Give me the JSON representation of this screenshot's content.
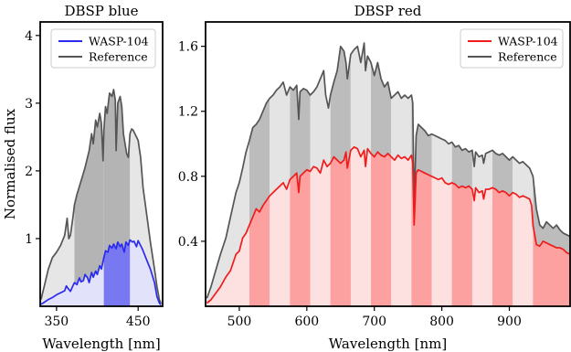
{
  "chart_data": [
    {
      "type": "area",
      "title": "DBSP blue",
      "xlabel": "Wavelength [nm]",
      "ylabel": "Normalised flux",
      "xlim": [
        330,
        480
      ],
      "ylim": [
        0,
        4.2
      ],
      "xticks": [
        350,
        450
      ],
      "xtick_labels": [
        "350",
        "450"
      ],
      "yticks": [
        1,
        2,
        3,
        4
      ],
      "ytick_labels": [
        "1",
        "2",
        "3",
        "4"
      ],
      "legend_position": "top-right",
      "bins": [
        [
          330,
          372
        ],
        [
          372,
          408
        ],
        [
          408,
          440
        ],
        [
          440,
          478
        ]
      ],
      "highlight_bin": 2,
      "series": [
        {
          "name": "WASP-104",
          "color": "#2b2bf0",
          "x": [
            331,
            335,
            340,
            345,
            350,
            355,
            360,
            362,
            365,
            367,
            370,
            372,
            375,
            378,
            380,
            383,
            385,
            388,
            390,
            393,
            395,
            398,
            400,
            403,
            405,
            408,
            410,
            413,
            415,
            418,
            420,
            423,
            425,
            428,
            430,
            433,
            435,
            438,
            440,
            443,
            445,
            448,
            450,
            455,
            460,
            465,
            470,
            473,
            476,
            478
          ],
          "y": [
            0.03,
            0.06,
            0.1,
            0.13,
            0.17,
            0.2,
            0.23,
            0.3,
            0.25,
            0.22,
            0.3,
            0.35,
            0.32,
            0.42,
            0.36,
            0.38,
            0.47,
            0.42,
            0.35,
            0.5,
            0.43,
            0.52,
            0.47,
            0.6,
            0.55,
            0.72,
            0.82,
            0.8,
            0.9,
            0.86,
            0.92,
            0.85,
            0.95,
            0.88,
            0.92,
            0.8,
            0.95,
            0.9,
            0.98,
            0.95,
            0.96,
            0.88,
            0.97,
            0.85,
            0.7,
            0.55,
            0.35,
            0.15,
            0.05,
            0.02
          ]
        },
        {
          "name": "Reference",
          "color": "#555555",
          "x": [
            331,
            335,
            340,
            345,
            350,
            355,
            360,
            363,
            365,
            367,
            370,
            372,
            375,
            380,
            385,
            390,
            393,
            395,
            398,
            400,
            403,
            405,
            407,
            408,
            410,
            412,
            414,
            415,
            418,
            420,
            422,
            423,
            425,
            428,
            430,
            432,
            434,
            436,
            438,
            440,
            442,
            444,
            446,
            448,
            450,
            453,
            456,
            460,
            465,
            470,
            473,
            476,
            478
          ],
          "y": [
            0.1,
            0.3,
            0.55,
            0.72,
            0.8,
            0.9,
            1.05,
            1.3,
            1.0,
            1.05,
            1.3,
            1.5,
            1.65,
            1.85,
            2.05,
            2.3,
            2.55,
            2.4,
            2.75,
            2.65,
            2.85,
            2.7,
            2.15,
            2.6,
            2.95,
            2.85,
            3.05,
            3.15,
            3.1,
            3.2,
            3.05,
            2.3,
            3.0,
            3.1,
            2.95,
            2.55,
            2.4,
            2.25,
            2.2,
            2.55,
            2.62,
            2.6,
            2.55,
            2.5,
            2.45,
            2.2,
            1.75,
            1.4,
            0.95,
            0.55,
            0.3,
            0.1,
            0.04
          ]
        }
      ]
    },
    {
      "type": "area",
      "title": "DBSP red",
      "xlabel": "Wavelength [nm]",
      "ylabel": "",
      "xlim": [
        450,
        990
      ],
      "ylim": [
        0,
        1.75
      ],
      "xticks": [
        500,
        600,
        700,
        800,
        900
      ],
      "xtick_labels": [
        "500",
        "600",
        "700",
        "800",
        "900"
      ],
      "yticks": [
        0.4,
        0.8,
        1.2,
        1.6
      ],
      "ytick_labels": [
        "0.4",
        "0.8",
        "1.2",
        "1.6"
      ],
      "legend_position": "top-right",
      "bins": [
        [
          450,
          515
        ],
        [
          515,
          545
        ],
        [
          545,
          575
        ],
        [
          575,
          605
        ],
        [
          605,
          635
        ],
        [
          635,
          665
        ],
        [
          665,
          695
        ],
        [
          695,
          725
        ],
        [
          725,
          755
        ],
        [
          755,
          785
        ],
        [
          785,
          815
        ],
        [
          815,
          845
        ],
        [
          845,
          875
        ],
        [
          875,
          905
        ],
        [
          905,
          935
        ],
        [
          935,
          990
        ]
      ],
      "series": [
        {
          "name": "WASP-104",
          "color": "#f01c1c",
          "x": [
            452,
            458,
            465,
            472,
            480,
            487,
            495,
            500,
            505,
            510,
            515,
            520,
            525,
            530,
            535,
            540,
            545,
            550,
            555,
            560,
            565,
            570,
            575,
            580,
            585,
            588,
            590,
            595,
            600,
            605,
            610,
            615,
            620,
            625,
            630,
            635,
            640,
            645,
            650,
            655,
            658,
            660,
            665,
            670,
            675,
            680,
            685,
            687,
            690,
            695,
            700,
            705,
            710,
            715,
            720,
            725,
            730,
            735,
            740,
            745,
            750,
            755,
            757,
            759,
            762,
            765,
            770,
            775,
            780,
            785,
            790,
            795,
            800,
            805,
            810,
            815,
            820,
            825,
            830,
            835,
            840,
            845,
            848,
            850,
            855,
            860,
            862,
            865,
            870,
            875,
            880,
            885,
            890,
            895,
            900,
            905,
            910,
            915,
            920,
            925,
            930,
            933,
            935,
            940,
            945,
            950,
            955,
            960,
            965,
            970,
            975,
            980,
            985,
            990
          ],
          "y": [
            0.02,
            0.04,
            0.08,
            0.12,
            0.18,
            0.22,
            0.32,
            0.34,
            0.42,
            0.45,
            0.5,
            0.55,
            0.6,
            0.58,
            0.62,
            0.65,
            0.68,
            0.7,
            0.72,
            0.74,
            0.76,
            0.72,
            0.78,
            0.8,
            0.82,
            0.7,
            0.8,
            0.82,
            0.84,
            0.83,
            0.86,
            0.85,
            0.82,
            0.9,
            0.86,
            0.88,
            0.92,
            0.9,
            0.88,
            0.9,
            0.95,
            0.85,
            0.96,
            0.98,
            0.97,
            0.92,
            0.96,
            0.86,
            0.97,
            0.94,
            0.92,
            0.95,
            0.93,
            0.92,
            0.94,
            0.92,
            0.9,
            0.93,
            0.91,
            0.92,
            0.9,
            0.93,
            0.88,
            0.5,
            0.82,
            0.84,
            0.83,
            0.82,
            0.81,
            0.8,
            0.79,
            0.78,
            0.79,
            0.76,
            0.75,
            0.76,
            0.75,
            0.73,
            0.74,
            0.73,
            0.74,
            0.72,
            0.65,
            0.73,
            0.7,
            0.71,
            0.66,
            0.72,
            0.72,
            0.73,
            0.72,
            0.7,
            0.71,
            0.7,
            0.68,
            0.7,
            0.69,
            0.67,
            0.68,
            0.67,
            0.66,
            0.62,
            0.5,
            0.38,
            0.37,
            0.4,
            0.39,
            0.38,
            0.37,
            0.36,
            0.36,
            0.35,
            0.33,
            0.32
          ]
        },
        {
          "name": "Reference",
          "color": "#555555",
          "x": [
            452,
            458,
            465,
            472,
            480,
            487,
            495,
            500,
            505,
            510,
            515,
            520,
            525,
            530,
            535,
            540,
            545,
            550,
            555,
            560,
            565,
            570,
            575,
            580,
            585,
            588,
            590,
            595,
            600,
            605,
            610,
            615,
            620,
            625,
            628,
            632,
            635,
            640,
            645,
            650,
            655,
            658,
            660,
            665,
            670,
            675,
            680,
            685,
            687,
            690,
            695,
            700,
            705,
            710,
            715,
            720,
            725,
            730,
            735,
            740,
            745,
            750,
            755,
            757,
            759,
            762,
            765,
            770,
            775,
            780,
            785,
            790,
            795,
            800,
            805,
            810,
            815,
            820,
            825,
            830,
            835,
            840,
            845,
            848,
            850,
            855,
            860,
            862,
            865,
            870,
            875,
            880,
            885,
            890,
            895,
            900,
            905,
            910,
            915,
            920,
            925,
            930,
            935,
            940,
            945,
            950,
            955,
            960,
            965,
            970,
            975,
            980,
            985,
            990
          ],
          "y": [
            0.05,
            0.12,
            0.22,
            0.32,
            0.42,
            0.55,
            0.7,
            0.76,
            0.85,
            0.95,
            1.02,
            1.1,
            1.12,
            1.15,
            1.2,
            1.25,
            1.28,
            1.3,
            1.33,
            1.35,
            1.38,
            1.3,
            1.35,
            1.33,
            1.36,
            1.15,
            1.32,
            1.34,
            1.33,
            1.3,
            1.32,
            1.35,
            1.4,
            1.45,
            1.3,
            1.22,
            1.3,
            1.38,
            1.45,
            1.6,
            1.57,
            1.5,
            1.4,
            1.55,
            1.58,
            1.6,
            1.5,
            1.62,
            1.45,
            1.54,
            1.5,
            1.42,
            1.5,
            1.4,
            1.35,
            1.38,
            1.28,
            1.3,
            1.32,
            1.28,
            1.3,
            1.28,
            1.3,
            1.25,
            0.6,
            1.05,
            1.12,
            1.1,
            1.08,
            1.05,
            1.06,
            1.05,
            1.04,
            1.03,
            1.02,
            1.0,
            1.01,
            0.98,
            0.99,
            0.96,
            0.97,
            0.95,
            0.96,
            0.86,
            0.95,
            0.92,
            0.93,
            0.88,
            0.94,
            0.95,
            0.96,
            0.94,
            0.93,
            0.94,
            0.92,
            0.9,
            0.92,
            0.9,
            0.88,
            0.89,
            0.87,
            0.85,
            0.8,
            0.6,
            0.5,
            0.48,
            0.52,
            0.5,
            0.48,
            0.5,
            0.47,
            0.45,
            0.44,
            0.43
          ]
        }
      ]
    }
  ]
}
